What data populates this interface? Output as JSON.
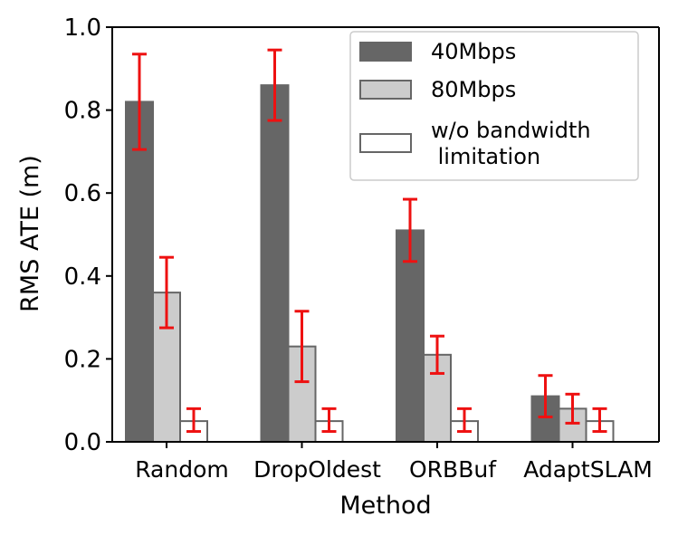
{
  "chart_data": {
    "type": "bar",
    "title": "",
    "xlabel": "Method",
    "ylabel": "RMS ATE (m)",
    "ylim": [
      0,
      1.0
    ],
    "yticks": [
      0.0,
      0.2,
      0.4,
      0.6,
      0.8,
      1.0
    ],
    "ytick_labels": [
      "0.0",
      "0.2",
      "0.4",
      "0.6",
      "0.8",
      "1.0"
    ],
    "categories": [
      "Random",
      "DropOldest",
      "ORBBuf",
      "AdaptSLAM"
    ],
    "series": [
      {
        "name": "40Mbps",
        "color": "#666666",
        "edge": "#666666",
        "values": [
          0.82,
          0.86,
          0.51,
          0.11
        ],
        "err_low": [
          0.705,
          0.775,
          0.435,
          0.06
        ],
        "err_high": [
          0.935,
          0.945,
          0.585,
          0.16
        ]
      },
      {
        "name": "80Mbps",
        "color": "#cccccc",
        "edge": "#666666",
        "values": [
          0.36,
          0.23,
          0.21,
          0.08
        ],
        "err_low": [
          0.275,
          0.145,
          0.165,
          0.045
        ],
        "err_high": [
          0.445,
          0.315,
          0.255,
          0.115
        ]
      },
      {
        "name": "w/o bandwidth\n limitation",
        "color": "#ffffff",
        "edge": "#666666",
        "values": [
          0.05,
          0.05,
          0.05,
          0.05
        ],
        "err_low": [
          0.025,
          0.025,
          0.025,
          0.025
        ],
        "err_high": [
          0.08,
          0.08,
          0.08,
          0.08
        ]
      }
    ],
    "error_bar_color": "#ee1111",
    "grid": false,
    "legend_position": "top-right"
  }
}
